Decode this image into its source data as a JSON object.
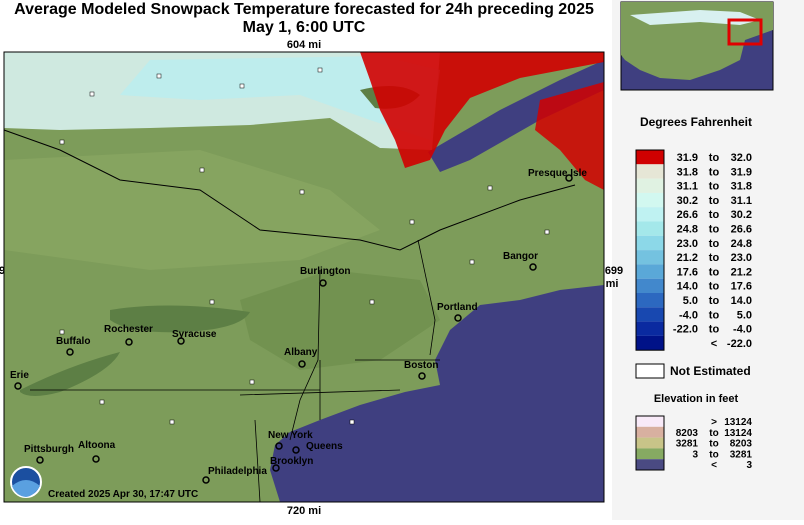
{
  "header": {
    "title_line1": "Average Modeled Snowpack Temperature forecasted for 24h preceding 2025",
    "title_line2": "May 1, 6:00 UTC"
  },
  "map": {
    "top_distance": "604 mi",
    "bottom_distance": "720 mi",
    "right_distance_number": "699",
    "right_distance_unit": "mi",
    "left_edge_fragment": "9",
    "created": "Created 2025 Apr 30, 17:47 UTC",
    "cities": [
      "Presque Isle",
      "Bangor",
      "Burlington",
      "Portland",
      "Rochester",
      "Syracuse",
      "Buffalo",
      "Albany",
      "Boston",
      "Erie",
      "Pittsburgh",
      "Altoona",
      "New York",
      "Queens",
      "Brooklyn",
      "Philadelphia"
    ]
  },
  "legend": {
    "title": "Degrees Fahrenheit",
    "rows": [
      [
        "31.9",
        "to",
        "32.0"
      ],
      [
        "31.8",
        "to",
        "31.9"
      ],
      [
        "31.1",
        "to",
        "31.8"
      ],
      [
        "30.2",
        "to",
        "31.1"
      ],
      [
        "26.6",
        "to",
        "30.2"
      ],
      [
        "24.8",
        "to",
        "26.6"
      ],
      [
        "23.0",
        "to",
        "24.8"
      ],
      [
        "21.2",
        "to",
        "23.0"
      ],
      [
        "17.6",
        "to",
        "21.2"
      ],
      [
        "14.0",
        "to",
        "17.6"
      ],
      [
        "5.0",
        "to",
        "14.0"
      ],
      [
        "-4.0",
        "to",
        "5.0"
      ],
      [
        "-22.0",
        "to",
        "-4.0"
      ],
      [
        "",
        "<",
        "-22.0"
      ]
    ],
    "not_estimated": "Not Estimated"
  },
  "elevation": {
    "title": "Elevation in feet",
    "rows": [
      [
        "",
        ">",
        "13124"
      ],
      [
        "8203",
        "to",
        "13124"
      ],
      [
        "3281",
        "to",
        "8203"
      ],
      [
        "3",
        "to",
        "3281"
      ],
      [
        "",
        "<",
        "3"
      ]
    ]
  }
}
